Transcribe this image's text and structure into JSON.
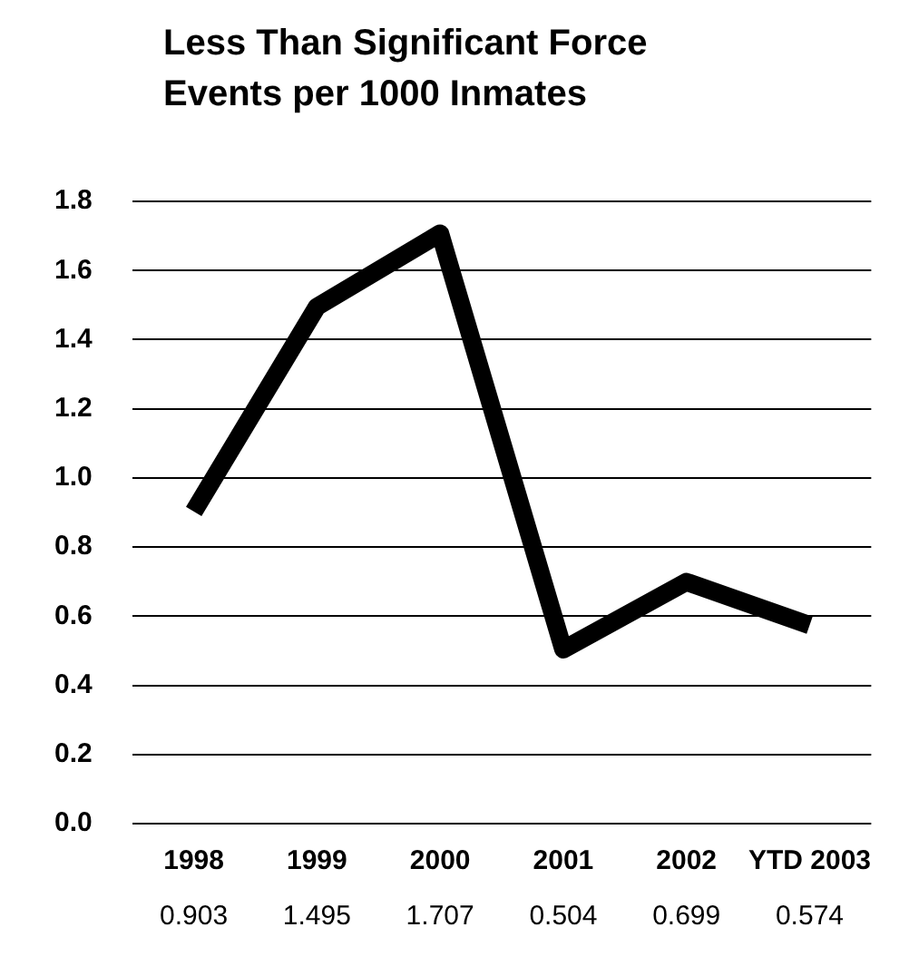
{
  "chart_data": {
    "type": "line",
    "title": "Less Than Significant Force Events per 1000 Inmates",
    "categories": [
      "1998",
      "1999",
      "2000",
      "2001",
      "2002",
      "YTD 2003"
    ],
    "series": [
      {
        "color": "#000000",
        "values": [
          0.903,
          1.495,
          1.707,
          0.504,
          0.699,
          0.574
        ]
      }
    ],
    "ylim": [
      0,
      1.8
    ],
    "yticks": [
      {
        "value": 0,
        "label": "0.0"
      },
      {
        "value": 0.2,
        "label": "0.2"
      },
      {
        "value": 0.4,
        "label": "0.4"
      },
      {
        "value": 0.6,
        "label": "0.6"
      },
      {
        "value": 0.8,
        "label": "0.8"
      },
      {
        "value": 1,
        "label": "1.0"
      },
      {
        "value": 1.2,
        "label": "1.2"
      },
      {
        "value": 1.4,
        "label": "1.4"
      },
      {
        "value": 1.6,
        "label": "1.6"
      },
      {
        "value": 1.8,
        "label": "1.8"
      }
    ],
    "grid": "y",
    "legend": false,
    "marker": "none",
    "line_style": "solid",
    "data_labels": true
  }
}
